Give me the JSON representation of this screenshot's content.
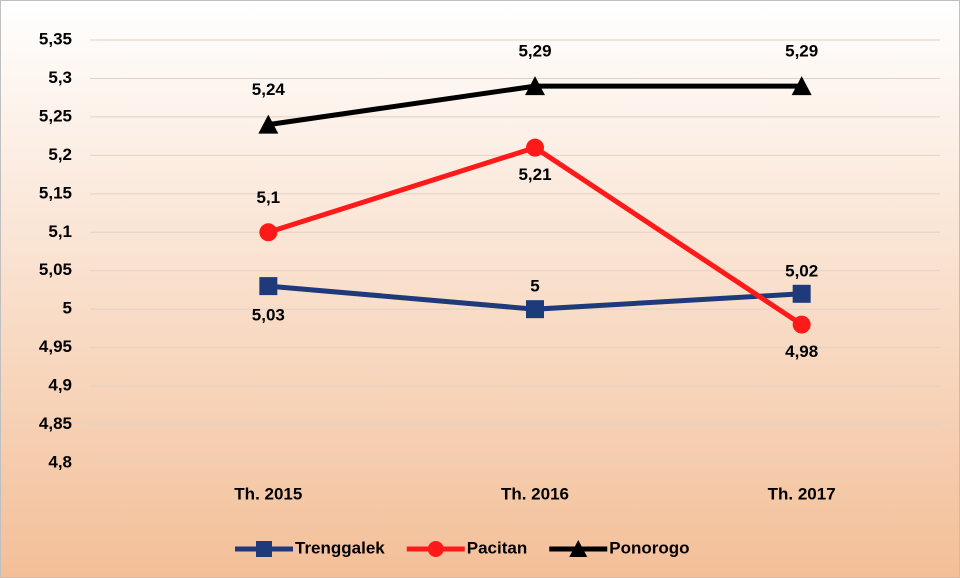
{
  "chart_data": {
    "type": "line",
    "categories": [
      "Th. 2015",
      "Th. 2016",
      "Th. 2017"
    ],
    "series": [
      {
        "name": "Trenggalek",
        "color": "#1f3a7a",
        "marker": "square",
        "values": [
          5.03,
          5,
          5.02
        ],
        "value_labels": [
          "5,03",
          "5",
          "5,02"
        ]
      },
      {
        "name": "Pacitan",
        "color": "#ff1a1a",
        "marker": "circle",
        "values": [
          5.1,
          5.21,
          4.98
        ],
        "value_labels": [
          "5,1",
          "5,21",
          "4,98"
        ]
      },
      {
        "name": "Ponorogo",
        "color": "#000000",
        "marker": "triangle",
        "values": [
          5.24,
          5.29,
          5.29
        ],
        "value_labels": [
          "5,24",
          "5,29",
          "5,29"
        ]
      }
    ],
    "ylim": [
      4.8,
      5.35
    ],
    "yticks": [
      {
        "value": 4.8,
        "label": "4,8"
      },
      {
        "value": 4.85,
        "label": "4,85"
      },
      {
        "value": 4.9,
        "label": "4,9"
      },
      {
        "value": 4.95,
        "label": "4,95"
      },
      5,
      {
        "value": 5.05,
        "label": "5,05"
      },
      {
        "value": 5.1,
        "label": "5,1"
      },
      {
        "value": 5.15,
        "label": "5,15"
      },
      {
        "value": 5.2,
        "label": "5,2"
      },
      {
        "value": 5.25,
        "label": "5,25"
      },
      {
        "value": 5.3,
        "label": "5,3"
      },
      {
        "value": 5.35,
        "label": "5,35"
      }
    ],
    "grid": true,
    "legend": "bottom"
  }
}
